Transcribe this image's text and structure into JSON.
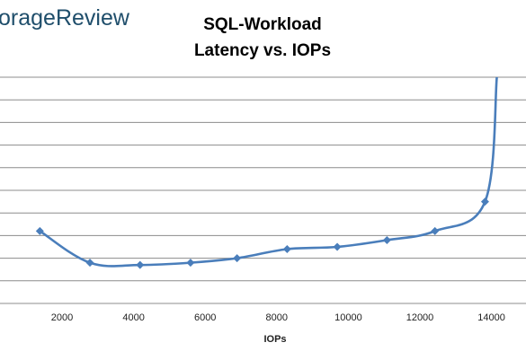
{
  "brand": {
    "text": "orageReview",
    "color": "#1f4e6b"
  },
  "chart_data": {
    "type": "line",
    "title": "SQL-Workload",
    "subtitle": "Latency vs. IOPs",
    "xlabel": "IOPs",
    "ylabel": "",
    "xlim": [
      0,
      14500
    ],
    "x_ticks": [
      "2000",
      "4000",
      "6000",
      "8000",
      "10000",
      "12000",
      "14000"
    ],
    "grid": true,
    "series": [
      {
        "color": "#4a7ebb",
        "marker": "diamond",
        "smooth": true,
        "x": [
          1380,
          2780,
          4180,
          5590,
          6890,
          8290,
          9690,
          11080,
          12420,
          13820,
          14150
        ],
        "y": [
          3.2,
          1.8,
          1.7,
          1.8,
          2.0,
          2.4,
          2.5,
          2.8,
          3.2,
          4.5,
          10.0
        ],
        "marker_points": 10
      }
    ]
  }
}
